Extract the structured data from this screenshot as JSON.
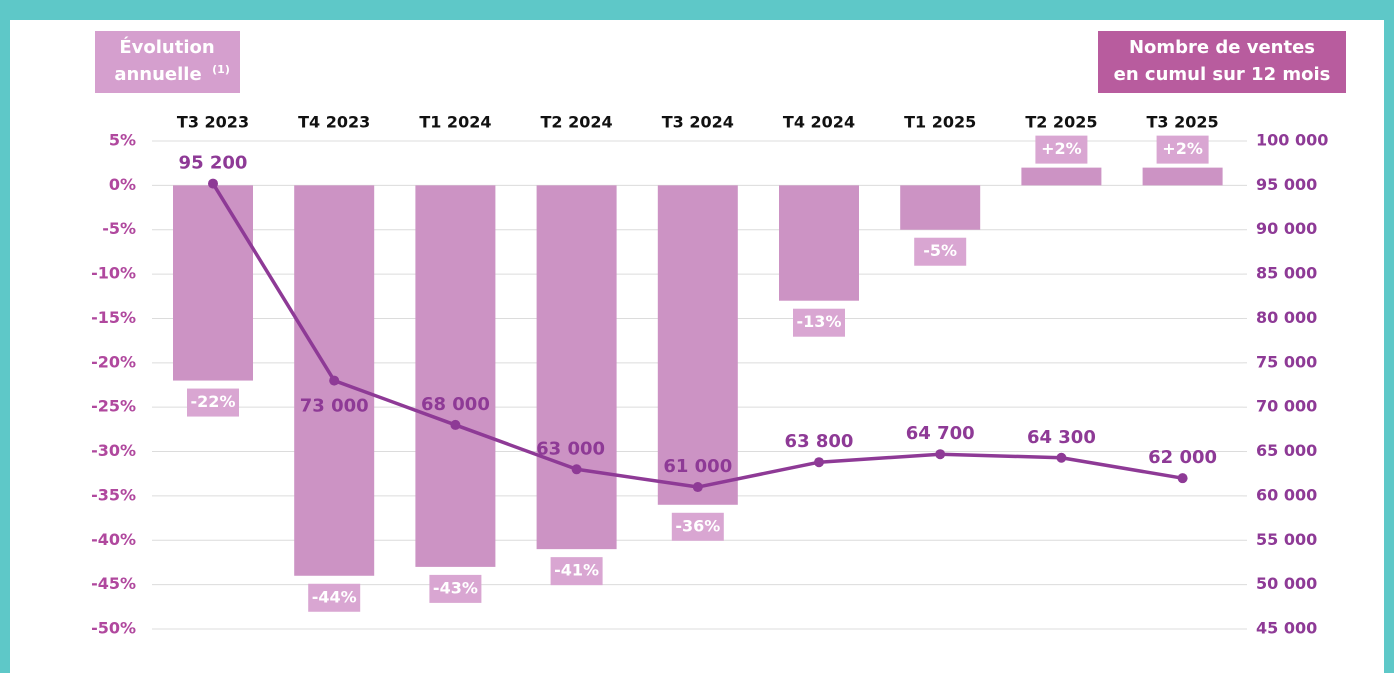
{
  "chart_data": {
    "type": "bar_line",
    "y_label_lines": [
      "Évolution",
      "annuelle"
    ],
    "y_label_note": "(1)",
    "y2_label_lines": [
      "Nombre de ventes",
      "en cumul sur 12 mois"
    ],
    "categories": [
      "T3 2023",
      "T4 2023",
      "T1 2024",
      "T2 2024",
      "T3 2024",
      "T4 2024",
      "T1 2025",
      "T2 2025",
      "T3 2025"
    ],
    "series": [
      {
        "type": "bar",
        "color": "#cc93c4",
        "label_color": "#d9a6d2",
        "values": [
          -22,
          -44,
          -43,
          -41,
          -36,
          -13,
          -5,
          2,
          2
        ],
        "value_labels": [
          "-22%",
          "-44%",
          "-43%",
          "-41%",
          "-36%",
          "-13%",
          "-5%",
          "+2%",
          "+2%"
        ]
      },
      {
        "type": "line",
        "axis": "y2",
        "color": "#8e3a96",
        "values": [
          95200,
          73000,
          68000,
          63000,
          61000,
          63800,
          64700,
          64300,
          62000
        ],
        "value_labels": [
          "95 200",
          "73 000",
          "68 000",
          "63 000",
          "61 000",
          "63 800",
          "64 700",
          "64 300",
          "62 000"
        ]
      }
    ],
    "ylim": [
      -50,
      5
    ],
    "yticks": [
      {
        "value": 5,
        "label": "5%"
      },
      {
        "value": 0,
        "label": "0%"
      },
      {
        "value": -5,
        "label": "-5%"
      },
      {
        "value": -10,
        "label": "-10%"
      },
      {
        "value": -15,
        "label": "-15%"
      },
      {
        "value": -20,
        "label": "-20%"
      },
      {
        "value": -25,
        "label": "-25%"
      },
      {
        "value": -30,
        "label": "-30%"
      },
      {
        "value": -35,
        "label": "-35%"
      },
      {
        "value": -40,
        "label": "-40%"
      },
      {
        "value": -45,
        "label": "-45%"
      },
      {
        "value": -50,
        "label": "-50%"
      }
    ],
    "y2lim": [
      45000,
      100000
    ],
    "y2ticks": [
      {
        "value": 100000,
        "label": "100 000"
      },
      {
        "value": 95000,
        "label": "95 000"
      },
      {
        "value": 90000,
        "label": "90 000"
      },
      {
        "value": 85000,
        "label": "85 000"
      },
      {
        "value": 80000,
        "label": "80 000"
      },
      {
        "value": 75000,
        "label": "75 000"
      },
      {
        "value": 70000,
        "label": "70 000"
      },
      {
        "value": 65000,
        "label": "65 000"
      },
      {
        "value": 60000,
        "label": "60 000"
      },
      {
        "value": 55000,
        "label": "55 000"
      },
      {
        "value": 50000,
        "label": "50 000"
      },
      {
        "value": 45000,
        "label": "45 000"
      }
    ],
    "grid": true
  }
}
